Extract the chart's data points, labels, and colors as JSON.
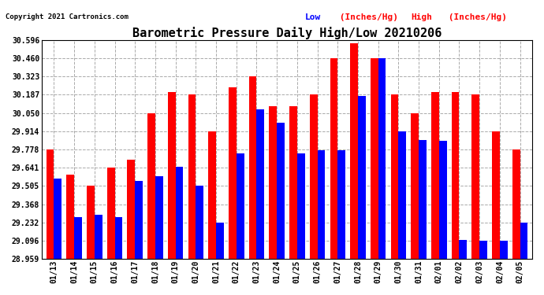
{
  "title": "Barometric Pressure Daily High/Low 20210206",
  "copyright": "Copyright 2021 Cartronics.com",
  "dates": [
    "01/13",
    "01/14",
    "01/15",
    "01/16",
    "01/17",
    "01/18",
    "01/19",
    "01/20",
    "01/21",
    "01/22",
    "01/23",
    "01/24",
    "01/25",
    "01/26",
    "01/27",
    "01/28",
    "01/29",
    "01/30",
    "01/31",
    "02/01",
    "02/02",
    "02/03",
    "02/04",
    "02/05"
  ],
  "high_values": [
    29.778,
    29.59,
    29.505,
    29.641,
    29.7,
    30.05,
    30.21,
    30.187,
    29.914,
    30.24,
    30.323,
    30.1,
    30.1,
    30.187,
    30.46,
    30.57,
    30.46,
    30.187,
    30.05,
    30.21,
    30.21,
    30.187,
    29.914,
    29.778
  ],
  "low_values": [
    29.56,
    29.27,
    29.29,
    29.27,
    29.54,
    29.58,
    29.65,
    29.505,
    29.23,
    29.75,
    30.08,
    29.98,
    29.75,
    29.77,
    29.77,
    30.18,
    30.46,
    29.914,
    29.85,
    29.84,
    29.1,
    29.095,
    29.095,
    29.232
  ],
  "ylim_min": 28.959,
  "ylim_max": 30.596,
  "yticks": [
    28.959,
    29.096,
    29.232,
    29.368,
    29.505,
    29.641,
    29.778,
    29.914,
    30.05,
    30.187,
    30.323,
    30.46,
    30.596
  ],
  "bar_width": 0.38,
  "high_color": "#FF0000",
  "low_color": "#0000FF",
  "grid_color": "#AAAAAA",
  "bg_color": "#FFFFFF",
  "title_fontsize": 11,
  "tick_fontsize": 7,
  "copyright_fontsize": 6.5,
  "legend_fontsize": 8
}
